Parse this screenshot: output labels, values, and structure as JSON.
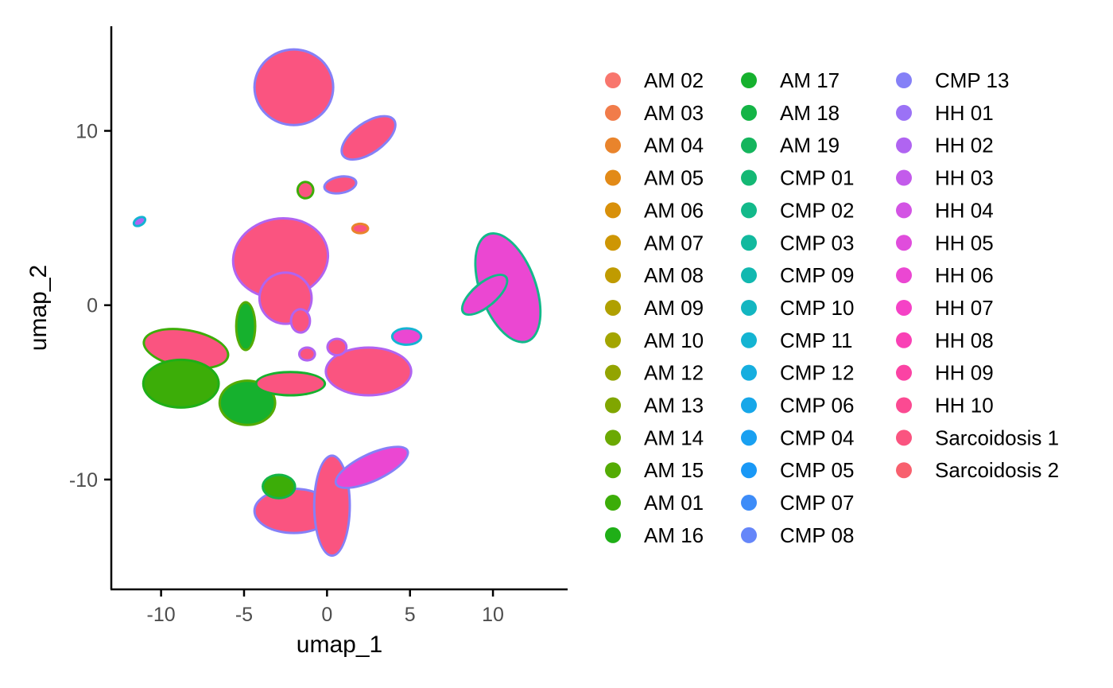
{
  "chart_data": {
    "type": "scatter",
    "title": "",
    "xlabel": "umap_1",
    "ylabel": "umap_2",
    "xlim": [
      -13,
      14.5
    ],
    "ylim": [
      -16.3,
      16
    ],
    "x_ticks": [
      {
        "value": -10,
        "label": "-10"
      },
      {
        "value": -5,
        "label": "-5"
      },
      {
        "value": 0,
        "label": "0"
      },
      {
        "value": 5,
        "label": "5"
      },
      {
        "value": 10,
        "label": "10"
      }
    ],
    "y_ticks": [
      {
        "value": -10,
        "label": "-10"
      },
      {
        "value": 0,
        "label": "0"
      },
      {
        "value": 10,
        "label": "10"
      }
    ],
    "grid": false,
    "legend_position": "right",
    "legend_columns": 3,
    "series": [
      {
        "name": "AM 02",
        "color": "#F8766D"
      },
      {
        "name": "AM 03",
        "color": "#F17C4A"
      },
      {
        "name": "AM 04",
        "color": "#E9842C"
      },
      {
        "name": "AM 05",
        "color": "#E28A17"
      },
      {
        "name": "AM 06",
        "color": "#D8900A"
      },
      {
        "name": "AM 07",
        "color": "#CE9604"
      },
      {
        "name": "AM 08",
        "color": "#C09B00"
      },
      {
        "name": "AM 09",
        "color": "#B0A000"
      },
      {
        "name": "AM 10",
        "color": "#A3A500"
      },
      {
        "name": "AM 12",
        "color": "#93A400"
      },
      {
        "name": "AM 13",
        "color": "#80A600"
      },
      {
        "name": "AM 14",
        "color": "#6BA902"
      },
      {
        "name": "AM 15",
        "color": "#54AB04"
      },
      {
        "name": "AM 01",
        "color": "#3CAD08"
      },
      {
        "name": "AM 16",
        "color": "#1FAF17"
      },
      {
        "name": "AM 17",
        "color": "#16B12E"
      },
      {
        "name": "AM 18",
        "color": "#14B446"
      },
      {
        "name": "AM 19",
        "color": "#15B55D"
      },
      {
        "name": "CMP 01",
        "color": "#14B874"
      },
      {
        "name": "CMP 02",
        "color": "#13B98A"
      },
      {
        "name": "CMP 03",
        "color": "#12B99E"
      },
      {
        "name": "CMP 09",
        "color": "#12B8B0"
      },
      {
        "name": "CMP 10",
        "color": "#13B6C1"
      },
      {
        "name": "CMP 11",
        "color": "#14B4D2"
      },
      {
        "name": "CMP 12",
        "color": "#16AEDF"
      },
      {
        "name": "CMP 06",
        "color": "#17A7E9"
      },
      {
        "name": "CMP 04",
        "color": "#19A0F1"
      },
      {
        "name": "CMP 05",
        "color": "#1998F6"
      },
      {
        "name": "CMP 07",
        "color": "#3D8CF8"
      },
      {
        "name": "CMP 08",
        "color": "#6586F9"
      },
      {
        "name": "CMP 13",
        "color": "#8580F7"
      },
      {
        "name": "HH 01",
        "color": "#9B72F6"
      },
      {
        "name": "HH 02",
        "color": "#B064F1"
      },
      {
        "name": "HH 03",
        "color": "#C35BEB"
      },
      {
        "name": "HH 04",
        "color": "#D354E4"
      },
      {
        "name": "HH 05",
        "color": "#E04DDC"
      },
      {
        "name": "HH 06",
        "color": "#EB47D2"
      },
      {
        "name": "HH 07",
        "color": "#F542C6"
      },
      {
        "name": "HH 08",
        "color": "#F941B5"
      },
      {
        "name": "HH 09",
        "color": "#FB43A4"
      },
      {
        "name": "HH 10",
        "color": "#FB4A92"
      },
      {
        "name": "Sarcoidosis 1",
        "color": "#FA5480"
      },
      {
        "name": "Sarcoidosis 2",
        "color": "#F8606E"
      }
    ],
    "clusters": [
      {
        "cx": -2,
        "cy": 12.5,
        "rx": 2.3,
        "ry": 2.1,
        "rot": 0,
        "color": "#FA5480",
        "edge": "#8580F7"
      },
      {
        "cx": 2.5,
        "cy": 9.6,
        "rx": 1.8,
        "ry": 0.8,
        "rot": -35,
        "color": "#FA5480",
        "edge": "#8580F7"
      },
      {
        "cx": -2.8,
        "cy": 2.7,
        "rx": 2.8,
        "ry": 2.2,
        "rot": -10,
        "color": "#FA5480",
        "edge": "#B064F1"
      },
      {
        "cx": -2.5,
        "cy": 0.4,
        "rx": 1.5,
        "ry": 1.4,
        "rot": 0,
        "color": "#FA5480",
        "edge": "#B064F1"
      },
      {
        "cx": 10.9,
        "cy": 1.0,
        "rx": 1.6,
        "ry": 3.2,
        "rot": -20,
        "color": "#EB47D2",
        "edge": "#13B98A"
      },
      {
        "cx": 9.5,
        "cy": 0.6,
        "rx": 1.6,
        "ry": 0.6,
        "rot": -40,
        "color": "#EB47D2",
        "edge": "#13B98A"
      },
      {
        "cx": 2.5,
        "cy": -3.8,
        "rx": 2.5,
        "ry": 1.3,
        "rot": 0,
        "color": "#FA5480",
        "edge": "#B064F1"
      },
      {
        "cx": -8.5,
        "cy": -2.5,
        "rx": 2.5,
        "ry": 1.0,
        "rot": 10,
        "color": "#FA5480",
        "edge": "#3CAD08"
      },
      {
        "cx": -8.8,
        "cy": -4.5,
        "rx": 2.2,
        "ry": 1.3,
        "rot": 0,
        "color": "#3CAD08",
        "edge": "#1FAF17"
      },
      {
        "cx": -4.8,
        "cy": -5.6,
        "rx": 1.6,
        "ry": 1.2,
        "rot": 0,
        "color": "#16B12E",
        "edge": "#54AB04"
      },
      {
        "cx": -2.2,
        "cy": -4.5,
        "rx": 2.0,
        "ry": 0.6,
        "rot": 0,
        "color": "#FA5480",
        "edge": "#16B12E"
      },
      {
        "cx": -2.0,
        "cy": -11.8,
        "rx": 2.3,
        "ry": 1.2,
        "rot": 0,
        "color": "#FA5480",
        "edge": "#8580F7"
      },
      {
        "cx": 0.3,
        "cy": -11.5,
        "rx": 1.0,
        "ry": 2.8,
        "rot": 0,
        "color": "#FA5480",
        "edge": "#8580F7"
      },
      {
        "cx": 2.7,
        "cy": -9.3,
        "rx": 2.3,
        "ry": 0.7,
        "rot": -25,
        "color": "#EB47D2",
        "edge": "#8580F7"
      },
      {
        "cx": -2.9,
        "cy": -10.4,
        "rx": 0.9,
        "ry": 0.6,
        "rot": 0,
        "color": "#3CAD08",
        "edge": "#14B446"
      },
      {
        "cx": 4.8,
        "cy": -1.8,
        "rx": 0.8,
        "ry": 0.4,
        "rot": 0,
        "color": "#EB47D2",
        "edge": "#14B4D2"
      },
      {
        "cx": -1.6,
        "cy": -0.9,
        "rx": 0.5,
        "ry": 0.6,
        "rot": 0,
        "color": "#FA5480",
        "edge": "#B064F1"
      },
      {
        "cx": -1.2,
        "cy": -2.8,
        "rx": 0.4,
        "ry": 0.3,
        "rot": 0,
        "color": "#FA5480",
        "edge": "#B064F1"
      },
      {
        "cx": 0.6,
        "cy": -2.4,
        "rx": 0.5,
        "ry": 0.4,
        "rot": 0,
        "color": "#FA5480",
        "edge": "#B064F1"
      },
      {
        "cx": -11.3,
        "cy": 4.8,
        "rx": 0.3,
        "ry": 0.15,
        "rot": -30,
        "color": "#B064F1",
        "edge": "#14B4D2"
      },
      {
        "cx": 2.0,
        "cy": 4.4,
        "rx": 0.4,
        "ry": 0.2,
        "rot": 0,
        "color": "#FA5480",
        "edge": "#E9842C"
      },
      {
        "cx": -1.3,
        "cy": 6.6,
        "rx": 0.4,
        "ry": 0.4,
        "rot": 0,
        "color": "#FA5480",
        "edge": "#3CAD08"
      },
      {
        "cx": 0.8,
        "cy": 6.9,
        "rx": 0.9,
        "ry": 0.4,
        "rot": -10,
        "color": "#FA5480",
        "edge": "#8580F7"
      },
      {
        "cx": -4.9,
        "cy": -1.2,
        "rx": 0.5,
        "ry": 1.3,
        "rot": 0,
        "color": "#16B12E",
        "edge": "#54AB04"
      }
    ]
  }
}
